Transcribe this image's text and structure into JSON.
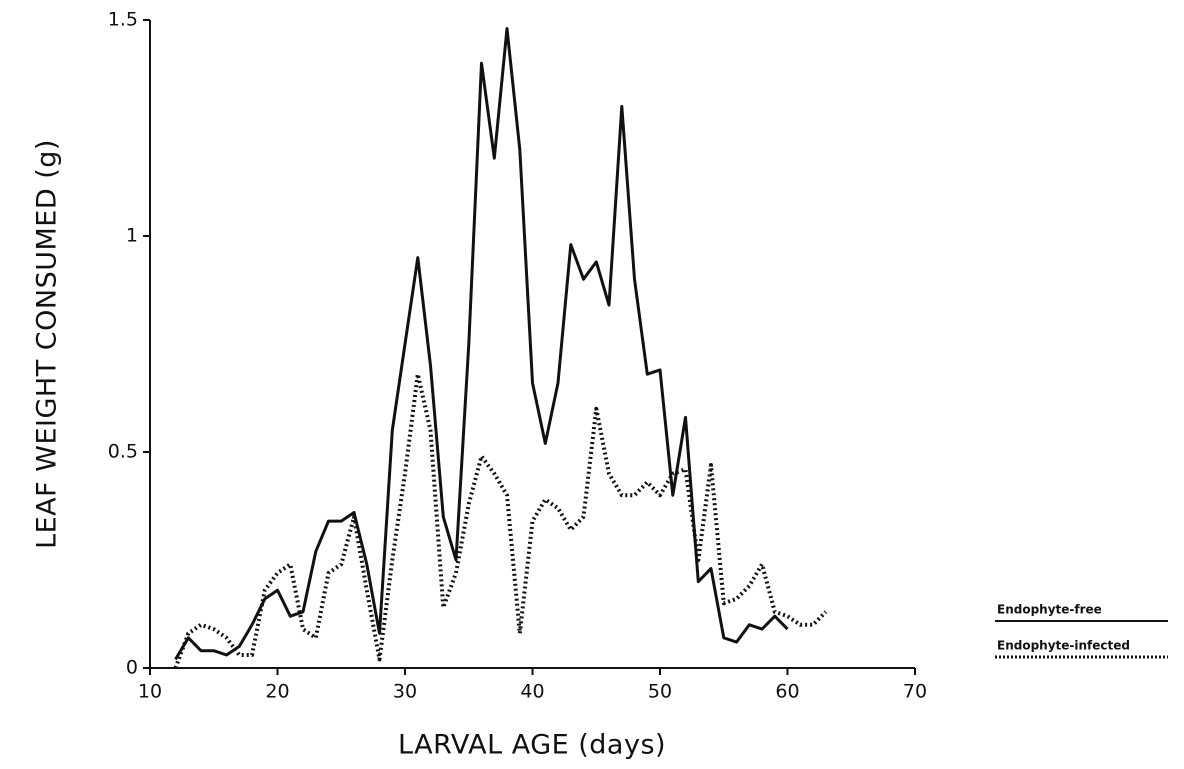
{
  "chart_data": {
    "type": "line",
    "xlabel": "LARVAL AGE (days)",
    "ylabel": "LEAF WEIGHT CONSUMED (g)",
    "x": [
      12,
      13,
      14,
      15,
      16,
      17,
      18,
      19,
      20,
      21,
      22,
      23,
      24,
      25,
      26,
      27,
      28,
      29,
      30,
      31,
      32,
      33,
      34,
      35,
      36,
      37,
      38,
      39,
      40,
      41,
      42,
      43,
      44,
      45,
      46,
      47,
      48,
      49,
      50,
      51,
      52,
      53,
      54,
      55,
      56,
      57,
      58,
      59,
      60,
      61,
      62,
      63
    ],
    "series": [
      {
        "name": "Endophyte-free",
        "color": "#111111",
        "style": "solid",
        "values": [
          0.02,
          0.07,
          0.04,
          0.04,
          0.03,
          0.05,
          0.1,
          0.16,
          0.18,
          0.12,
          0.13,
          0.27,
          0.34,
          0.34,
          0.36,
          0.24,
          0.08,
          0.55,
          0.75,
          0.95,
          0.7,
          0.35,
          0.25,
          0.75,
          1.4,
          1.18,
          1.48,
          1.2,
          0.66,
          0.52,
          0.66,
          0.98,
          0.9,
          0.94,
          0.84,
          1.3,
          0.9,
          0.68,
          0.69,
          0.4,
          0.58,
          0.2,
          0.23,
          0.07,
          0.06,
          0.1,
          0.09,
          0.12,
          0.09,
          null,
          null,
          null
        ]
      },
      {
        "name": "Endophyte-infected",
        "color": "#111111",
        "style": "dotted",
        "values": [
          0.0,
          0.08,
          0.1,
          0.09,
          0.07,
          0.03,
          0.03,
          0.18,
          0.22,
          0.24,
          0.09,
          0.07,
          0.22,
          0.24,
          0.35,
          0.18,
          0.02,
          0.25,
          0.45,
          0.68,
          0.55,
          0.14,
          0.22,
          0.38,
          0.49,
          0.45,
          0.4,
          0.08,
          0.34,
          0.39,
          0.37,
          0.32,
          0.35,
          0.6,
          0.45,
          0.4,
          0.4,
          0.43,
          0.4,
          0.45,
          0.46,
          0.25,
          0.47,
          0.15,
          0.16,
          0.19,
          0.24,
          0.13,
          0.12,
          0.1,
          0.1,
          0.13
        ]
      }
    ],
    "xlim": [
      10,
      70
    ],
    "xticks": [
      10,
      20,
      30,
      40,
      50,
      60,
      70
    ],
    "ylim": [
      0,
      1.5
    ],
    "yticks": [
      0,
      0.5,
      1,
      1.5
    ],
    "grid": false,
    "legend": "lower right outside"
  }
}
